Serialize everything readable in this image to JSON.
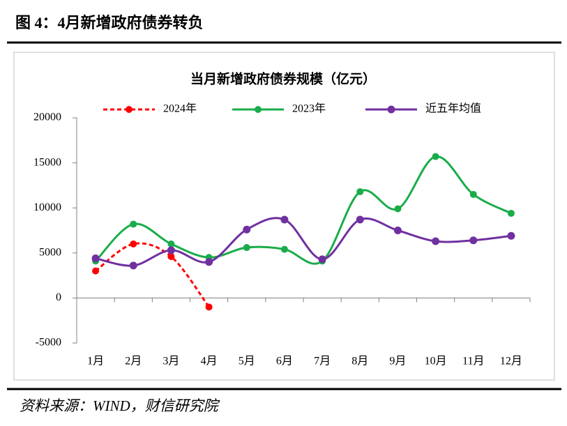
{
  "header": {
    "title": "图 4：4月新增政府债券转负"
  },
  "source": "资料来源：WIND，财信研究院",
  "chart_data": {
    "type": "line",
    "title": "当月新增政府债券规模（亿元）",
    "categories": [
      "1月",
      "2月",
      "3月",
      "4月",
      "5月",
      "6月",
      "7月",
      "8月",
      "9月",
      "10月",
      "11月",
      "12月"
    ],
    "series": [
      {
        "name": "2024年",
        "color": "#ff0000",
        "linestyle": "dashed",
        "values": [
          3000,
          6000,
          4600,
          -1000,
          null,
          null,
          null,
          null,
          null,
          null,
          null,
          null
        ]
      },
      {
        "name": "2023年",
        "color": "#1aac4a",
        "linestyle": "solid",
        "values": [
          4100,
          8200,
          6000,
          4500,
          5600,
          5400,
          4100,
          11800,
          9900,
          15700,
          11500,
          9400
        ]
      },
      {
        "name": "近五年均值",
        "color": "#7030a0",
        "linestyle": "solid",
        "values": [
          4400,
          3600,
          5300,
          4000,
          7600,
          8700,
          4300,
          8700,
          7500,
          6300,
          6400,
          6900
        ]
      }
    ],
    "ylim": [
      -5000,
      20000
    ],
    "yticks": [
      -5000,
      0,
      5000,
      10000,
      15000,
      20000
    ],
    "grid": false,
    "legend": "top",
    "smooth": true
  }
}
